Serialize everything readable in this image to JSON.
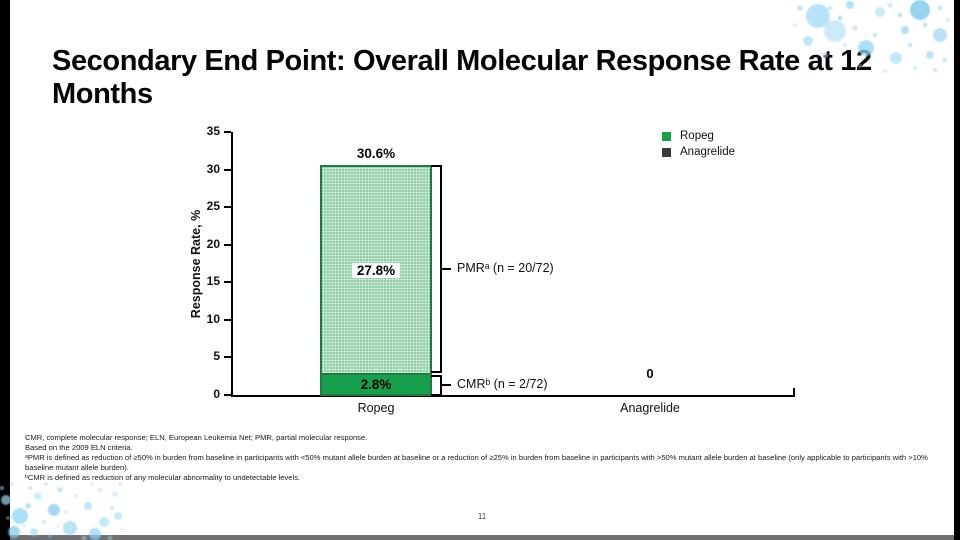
{
  "slide": {
    "title": "Secondary End Point: Overall Molecular Response Rate at 12 Months",
    "page_number": "11"
  },
  "chart_data": {
    "type": "bar",
    "stacked": true,
    "title": "",
    "ylabel": "Response Rate, %",
    "ylim": [
      0,
      35
    ],
    "yticks": [
      0,
      5,
      10,
      15,
      20,
      25,
      30,
      35
    ],
    "categories": [
      "Ropeg",
      "Anagrelide"
    ],
    "series": [
      {
        "name": "CMR",
        "values": [
          2.8,
          0
        ],
        "color": "#17a04b"
      },
      {
        "name": "PMR",
        "values": [
          27.8,
          0
        ],
        "color": "#94cfa9"
      }
    ],
    "bar_labels": {
      "ropeg_total": "30.6%",
      "ropeg_pmr": "27.8%",
      "ropeg_cmr": "2.8%",
      "anagrelide_total": "0"
    },
    "annotations": {
      "pmr": "PMRᵃ (n = 20/72)",
      "cmr": "CMRᵇ (n = 2/72)"
    },
    "legend": [
      {
        "label": "Ropeg",
        "color": "#17a04b"
      },
      {
        "label": "Anagrelide",
        "color": "#3a3a3a"
      }
    ],
    "legend_position": "top-right",
    "grid": false
  },
  "footnotes": {
    "lines": [
      "CMR, complete molecular response; ELN, European Leukemia Net; PMR, partial molecular response.",
      "Based on the 2009 ELN criteria.",
      "ᵃPMR is defined as reduction of ≥50% in burden from baseline in participants with <50% mutant allele burden at baseline or a reduction of ≥25% in burden from baseline in participants with >50% mutant allele burden at baseline (only applicable to participants with >10% baseline mutant allele burden).",
      "ᵇCMR is defined as reduction of any molecular abnormality to undetectable levels."
    ]
  },
  "colors": {
    "ropeg_green": "#17a04b",
    "pmr_light_green": "#94cfa9",
    "bar_border_green": "#1c7a42",
    "anagrelide_dark": "#3a3a3a",
    "bubble_blue": "#8fd4f2"
  }
}
